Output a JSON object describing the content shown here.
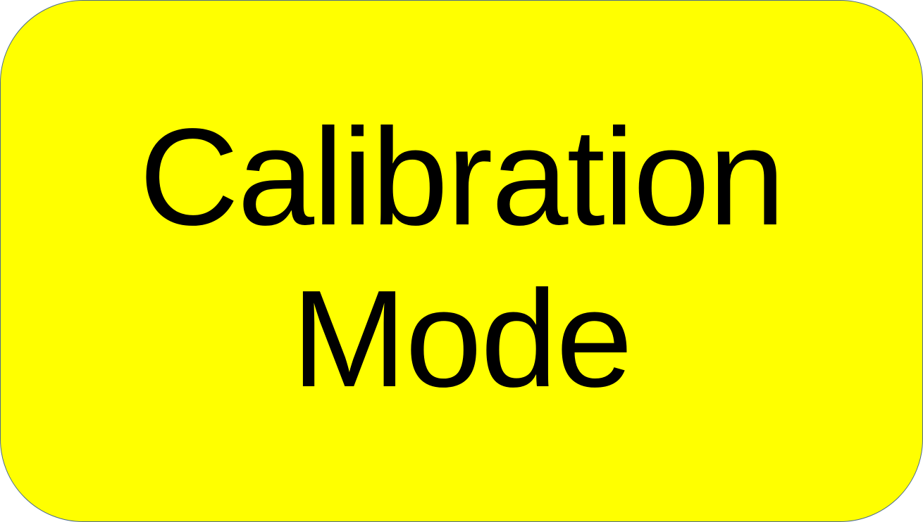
{
  "label": {
    "line1": "Calibration",
    "line2": "Mode"
  },
  "colors": {
    "background": "#ffff00",
    "text": "#000000",
    "border": "#4a6a8c"
  }
}
